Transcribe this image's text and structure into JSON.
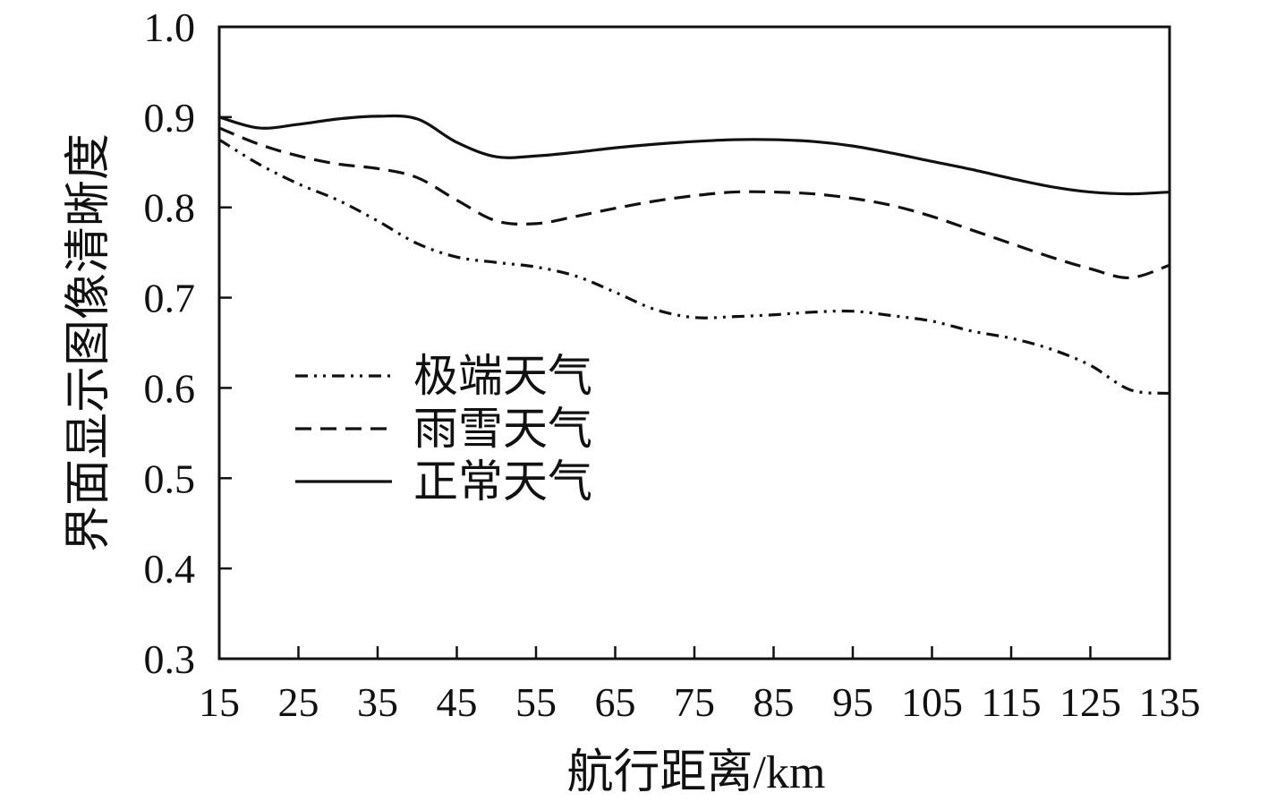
{
  "chart_data": {
    "type": "line",
    "title": "",
    "xlabel": "航行距离/km",
    "ylabel": "界面显示图像清晰度",
    "x_ticks": [
      15,
      25,
      35,
      45,
      55,
      65,
      75,
      85,
      95,
      105,
      115,
      125,
      135
    ],
    "x_tick_labels": [
      "15",
      "25",
      "35",
      "45",
      "55",
      "65",
      "75",
      "85",
      "95",
      "105",
      "115",
      "125",
      "135"
    ],
    "y_ticks": [
      0.3,
      0.4,
      0.5,
      0.6,
      0.7,
      0.8,
      0.9,
      1.0
    ],
    "y_tick_labels": [
      "0.3",
      "0.4",
      "0.5",
      "0.6",
      "0.7",
      "0.8",
      "0.9",
      "1.0"
    ],
    "xlim": [
      15,
      135
    ],
    "ylim": [
      0.3,
      1.0
    ],
    "grid": false,
    "legend_position": "middle-left",
    "series": [
      {
        "name": "极端天气",
        "style": "dash-dot-dot",
        "color": "#111111",
        "x": [
          15,
          20,
          25,
          30,
          35,
          40,
          45,
          50,
          55,
          60,
          65,
          70,
          75,
          80,
          85,
          90,
          95,
          100,
          105,
          110,
          115,
          120,
          125,
          130,
          135
        ],
        "y": [
          0.875,
          0.848,
          0.826,
          0.808,
          0.785,
          0.76,
          0.745,
          0.739,
          0.734,
          0.724,
          0.706,
          0.687,
          0.678,
          0.679,
          0.681,
          0.684,
          0.685,
          0.68,
          0.674,
          0.663,
          0.655,
          0.643,
          0.625,
          0.598,
          0.594
        ]
      },
      {
        "name": "雨雪天气",
        "style": "dashed",
        "color": "#111111",
        "x": [
          15,
          20,
          25,
          30,
          35,
          40,
          45,
          50,
          55,
          60,
          65,
          70,
          75,
          80,
          85,
          90,
          95,
          100,
          105,
          110,
          115,
          120,
          125,
          130,
          135
        ],
        "y": [
          0.888,
          0.87,
          0.857,
          0.848,
          0.843,
          0.833,
          0.808,
          0.785,
          0.782,
          0.79,
          0.799,
          0.807,
          0.813,
          0.817,
          0.817,
          0.815,
          0.81,
          0.802,
          0.79,
          0.775,
          0.76,
          0.745,
          0.732,
          0.722,
          0.736
        ]
      },
      {
        "name": "正常天气",
        "style": "solid",
        "color": "#111111",
        "x": [
          15,
          20,
          25,
          30,
          35,
          40,
          45,
          50,
          55,
          60,
          65,
          70,
          75,
          80,
          85,
          90,
          95,
          100,
          105,
          110,
          115,
          120,
          125,
          130,
          135
        ],
        "y": [
          0.9,
          0.888,
          0.892,
          0.898,
          0.901,
          0.898,
          0.872,
          0.856,
          0.857,
          0.861,
          0.866,
          0.87,
          0.873,
          0.875,
          0.875,
          0.873,
          0.868,
          0.86,
          0.851,
          0.842,
          0.832,
          0.823,
          0.817,
          0.815,
          0.817
        ]
      }
    ]
  }
}
